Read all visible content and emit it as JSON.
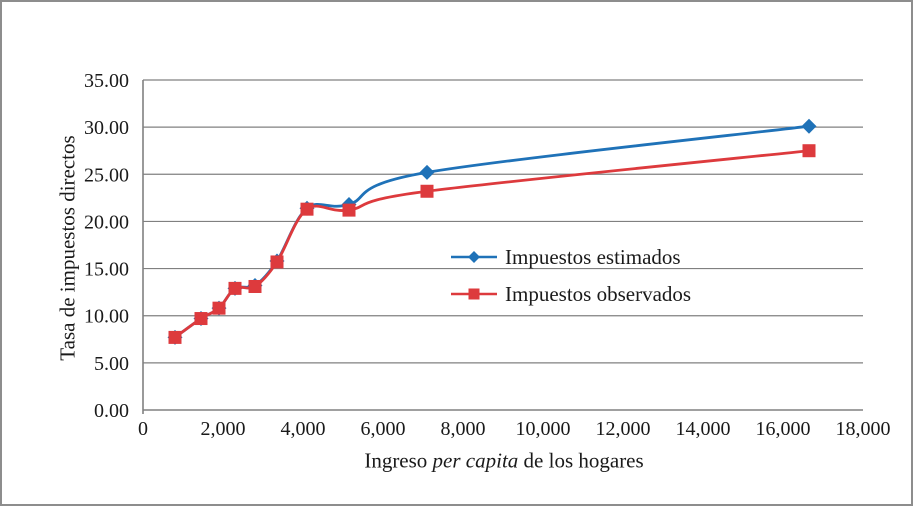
{
  "figure": {
    "background": "#ffffff",
    "border_color": "#8d8d8d",
    "text_color": "#1a1a1a",
    "grid_color": "#808080",
    "axis_color": "#808080"
  },
  "chart_data": {
    "type": "line",
    "title": "",
    "xlabel": "Ingreso per capita de los hogares",
    "xlabel_parts": {
      "prefix": "Ingreso ",
      "italic": "per capita",
      "suffix": " de los hogares"
    },
    "ylabel": "Tasa de impuestos directos",
    "x": [
      800,
      1450,
      1900,
      2300,
      2800,
      3350,
      4100,
      5150,
      7100,
      16650
    ],
    "series": [
      {
        "name": "Impuestos estimados",
        "color": "#1f72b8",
        "marker": "diamond",
        "values": [
          7.7,
          9.7,
          10.8,
          12.9,
          13.2,
          15.8,
          21.4,
          21.8,
          25.2,
          30.1
        ]
      },
      {
        "name": "Impuestos observados",
        "color": "#dd3a3d",
        "marker": "square",
        "values": [
          7.7,
          9.7,
          10.8,
          12.9,
          13.1,
          15.7,
          21.3,
          21.2,
          23.2,
          27.5
        ]
      }
    ],
    "xlim": [
      0,
      18000
    ],
    "ylim": [
      0,
      35
    ],
    "x_ticks": [
      0,
      2000,
      4000,
      6000,
      8000,
      10000,
      12000,
      14000,
      16000,
      18000
    ],
    "x_tick_labels": [
      "0",
      "2,000",
      "4,000",
      "6,000",
      "8,000",
      "10,000",
      "12,000",
      "14,000",
      "16,000",
      "18,000"
    ],
    "y_ticks": [
      0,
      5,
      10,
      15,
      20,
      25,
      30,
      35
    ],
    "y_tick_labels": [
      "0.00",
      "5.00",
      "10.00",
      "15.00",
      "20.00",
      "25.00",
      "30.00",
      "35.00"
    ],
    "grid": true,
    "line_smoothing": true,
    "legend_position": "inside-center-right"
  }
}
